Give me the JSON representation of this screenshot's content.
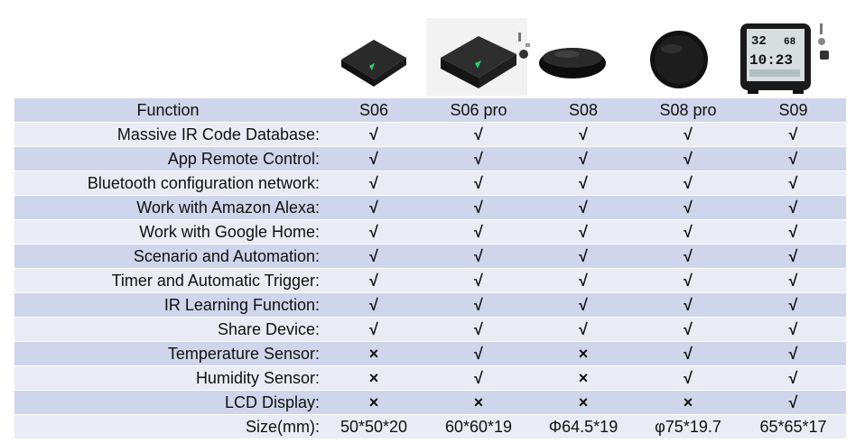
{
  "colors": {
    "check": "#1aaa55",
    "cross": "#e0202a",
    "row_light": "#e9ebf5",
    "row_dark": "#cfd5ea"
  },
  "header": {
    "function_label": "Function",
    "products": [
      "S06",
      "S06 pro",
      "S08",
      "S08 pro",
      "S09"
    ]
  },
  "product_images": [
    "S06 square black IR hub",
    "S06 pro square black IR hub",
    "S08 round black IR hub",
    "S08 pro round black IR hub",
    "S09 LCD display IR hub"
  ],
  "lcd_screen": {
    "temp": "32",
    "humidity": "68",
    "time": "10:23"
  },
  "rows": [
    {
      "label": "Massive IR Code Database:",
      "values": [
        "√",
        "√",
        "√",
        "√",
        "√"
      ]
    },
    {
      "label": "App Remote Control:",
      "values": [
        "√",
        "√",
        "√",
        "√",
        "√"
      ]
    },
    {
      "label": "Bluetooth configuration network:",
      "values": [
        "√",
        "√",
        "√",
        "√",
        "√"
      ]
    },
    {
      "label": "Work with Amazon Alexa:",
      "values": [
        "√",
        "√",
        "√",
        "√",
        "√"
      ]
    },
    {
      "label": "Work with Google Home:",
      "values": [
        "√",
        "√",
        "√",
        "√",
        "√"
      ]
    },
    {
      "label": "Scenario and Automation:",
      "values": [
        "√",
        "√",
        "√",
        "√",
        "√"
      ]
    },
    {
      "label": "Timer and Automatic Trigger:",
      "values": [
        "√",
        "√",
        "√",
        "√",
        "√"
      ]
    },
    {
      "label": "IR Learning Function:",
      "values": [
        "√",
        "√",
        "√",
        "√",
        "√"
      ]
    },
    {
      "label": "Share Device:",
      "values": [
        "√",
        "√",
        "√",
        "√",
        "√"
      ]
    },
    {
      "label": "Temperature Sensor:",
      "values": [
        "×",
        "√",
        "×",
        "√",
        "√"
      ]
    },
    {
      "label": "Humidity Sensor:",
      "values": [
        "×",
        "√",
        "×",
        "√",
        "√"
      ]
    },
    {
      "label": "LCD Display:",
      "values": [
        "×",
        "×",
        "×",
        "×",
        "√"
      ]
    },
    {
      "label": "Size(mm):",
      "values": [
        "50*50*20",
        "60*60*19",
        "Φ64.5*19",
        "φ75*19.7",
        "65*65*17"
      ]
    }
  ]
}
